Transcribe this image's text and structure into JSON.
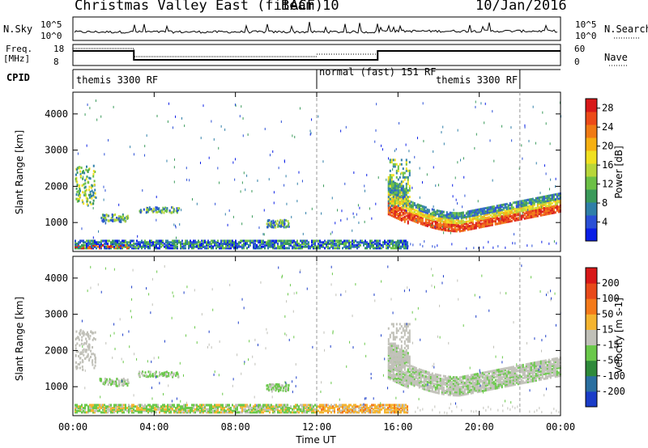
{
  "header": {
    "station": "Christmas Valley East (fitACF)",
    "beam": "Beam 10",
    "date": "10/Jan/2016"
  },
  "panels": {
    "nsky": {
      "label": "N.Sky",
      "ticks": [
        "10^5",
        "10^0"
      ],
      "right_ticks": [
        "10^5",
        "10^0"
      ],
      "right_label": "N.Search"
    },
    "freq": {
      "label_top": "Freq.",
      "label_bottom": "[MHz]",
      "ticks": [
        "18",
        "8"
      ],
      "right_ticks": [
        "60",
        "0"
      ],
      "right_label": "Nave"
    },
    "cpid": {
      "label": "CPID",
      "modes": [
        "themis 3300 RF",
        "normal (fast) 151 RF",
        "themis 3300 RF"
      ]
    }
  },
  "chart_data": [
    {
      "type": "heatmap",
      "quantity": "Power",
      "ylabel": "Slant Range [km]",
      "xlabel": "",
      "y_ticks": [
        "1000",
        "2000",
        "3000",
        "4000"
      ],
      "ylim": [
        200,
        4600
      ],
      "colorbar": {
        "label": "Power [dB]",
        "ticks": [
          "4",
          "8",
          "12",
          "16",
          "20",
          "24",
          "28"
        ],
        "colors": [
          "#0a1ee6",
          "#2a4fd6",
          "#2f7fa8",
          "#3a9a5a",
          "#6cc046",
          "#b8d63a",
          "#f0e020",
          "#f6b012",
          "#f07a14",
          "#ec4a18",
          "#d81818"
        ]
      },
      "features": [
        {
          "x_hours": [
            0.0,
            12.0
          ],
          "range_km": [
            250,
            450
          ],
          "level": "low-to-mid"
        },
        {
          "x_hours": [
            15.5,
            24.0
          ],
          "range_km": [
            1000,
            2800
          ],
          "level": "high"
        }
      ]
    },
    {
      "type": "heatmap",
      "quantity": "Velocity",
      "ylabel": "Slant Range [km]",
      "xlabel": "Time UT",
      "x_ticks": [
        "00:00",
        "04:00",
        "08:00",
        "12:00",
        "16:00",
        "20:00",
        "00:00"
      ],
      "y_ticks": [
        "1000",
        "2000",
        "3000",
        "4000"
      ],
      "ylim": [
        200,
        4600
      ],
      "colorbar": {
        "label": "Velocity [m s-1]",
        "ticks": [
          "200",
          "100",
          "50",
          "15",
          "-15",
          "-50",
          "-100",
          "-200"
        ],
        "colors": [
          "#1a3cc8",
          "#2a6fa0",
          "#2e8a3a",
          "#6ac84a",
          "#c0c0b8",
          "#f4b430",
          "#f47a1a",
          "#e84a1a",
          "#d81818"
        ]
      },
      "features": [
        {
          "x_hours": [
            0.0,
            12.0
          ],
          "range_km": [
            250,
            450
          ],
          "level": "positive-slow"
        },
        {
          "x_hours": [
            12.0,
            16.0
          ],
          "range_km": [
            250,
            450
          ],
          "level": "negative-slow"
        },
        {
          "x_hours": [
            15.5,
            24.0
          ],
          "range_km": [
            1000,
            2800
          ],
          "level": "near-zero"
        }
      ]
    }
  ]
}
